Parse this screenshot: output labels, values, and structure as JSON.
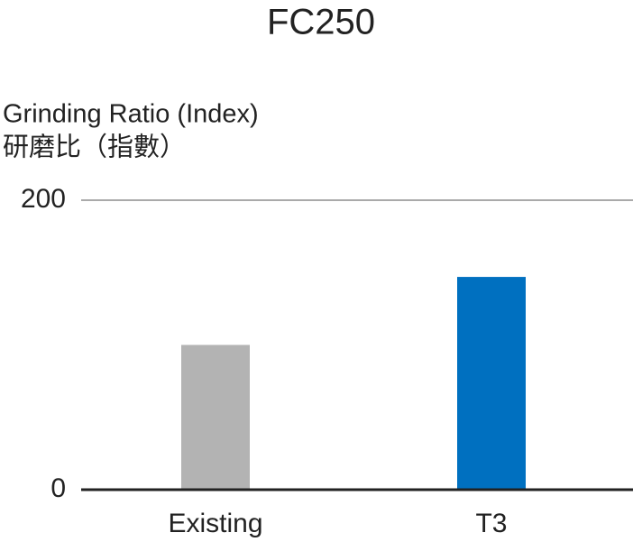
{
  "chart_data": {
    "type": "bar",
    "title": "FC250",
    "y_label_lines": [
      "Grinding Ratio (Index)",
      "研磨比（指數）"
    ],
    "categories": [
      "Existing",
      "T3"
    ],
    "values": [
      100,
      147
    ],
    "colors": [
      "#b3b3b3",
      "#0070c0"
    ],
    "ylim": [
      0,
      200
    ],
    "yticks": [
      0,
      200
    ],
    "grid": true
  }
}
